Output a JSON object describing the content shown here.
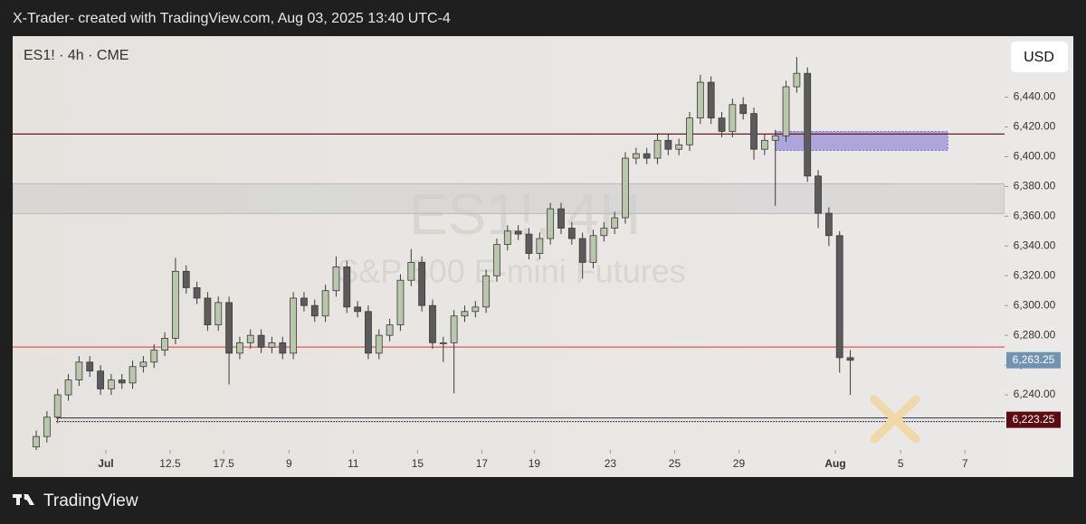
{
  "header": {
    "attribution": "X-Trader- created with TradingView.com, Aug 03, 2025 13:40 UTC-4"
  },
  "chart_data": {
    "type": "candlestick",
    "symbol": "ES1! · 4h · CME",
    "watermark_title": "ES1!, 4H",
    "watermark_subtitle": "S&P 500 E-mini Futures",
    "currency": "USD",
    "up_color": "#b9c7ab",
    "down_color": "#5b5b5b",
    "open": [
      6205,
      6212,
      6225,
      6240,
      6250,
      6262,
      6256,
      6244,
      6250,
      6248,
      6259,
      6262,
      6270,
      6278,
      6323,
      6312,
      6305,
      6287,
      6302,
      6268,
      6275,
      6280,
      6272,
      6275,
      6268,
      6305,
      6300,
      6293,
      6310,
      6326,
      6299,
      6296,
      6268,
      6280,
      6287,
      6317,
      6329,
      6300,
      6275,
      6275,
      6293,
      6296,
      6299,
      6320,
      6341,
      6350,
      6348,
      6335,
      6345,
      6365,
      6352,
      6345,
      6329,
      6347,
      6352,
      6359,
      6399,
      6402,
      6399,
      6411,
      6405,
      6408,
      6426,
      6450,
      6426,
      6417,
      6435,
      6429,
      6405,
      6411,
      6414,
      6447,
      6456,
      6387,
      6362,
      6347,
      6265
    ],
    "high": [
      6216,
      6229,
      6244,
      6254,
      6266,
      6266,
      6260,
      6254,
      6254,
      6263,
      6266,
      6274,
      6282,
      6332,
      6327,
      6316,
      6309,
      6306,
      6306,
      6279,
      6284,
      6284,
      6279,
      6279,
      6309,
      6309,
      6304,
      6314,
      6333,
      6330,
      6303,
      6300,
      6284,
      6291,
      6321,
      6338,
      6333,
      6304,
      6279,
      6297,
      6300,
      6303,
      6324,
      6345,
      6354,
      6354,
      6352,
      6349,
      6369,
      6369,
      6356,
      6349,
      6351,
      6356,
      6363,
      6403,
      6406,
      6406,
      6415,
      6415,
      6412,
      6430,
      6455,
      6454,
      6430,
      6439,
      6440,
      6433,
      6415,
      6418,
      6451,
      6467,
      6460,
      6391,
      6366,
      6350,
      6270
    ],
    "low": [
      6203,
      6208,
      6221,
      6236,
      6246,
      6252,
      6240,
      6240,
      6244,
      6244,
      6255,
      6258,
      6266,
      6274,
      6308,
      6301,
      6283,
      6283,
      6247,
      6264,
      6271,
      6268,
      6268,
      6264,
      6264,
      6296,
      6289,
      6289,
      6306,
      6295,
      6292,
      6264,
      6264,
      6276,
      6283,
      6313,
      6296,
      6271,
      6262,
      6241,
      6289,
      6292,
      6295,
      6316,
      6337,
      6344,
      6331,
      6331,
      6341,
      6348,
      6341,
      6318,
      6325,
      6343,
      6348,
      6355,
      6395,
      6395,
      6395,
      6401,
      6401,
      6404,
      6422,
      6422,
      6413,
      6413,
      6425,
      6398,
      6401,
      6367,
      6410,
      6443,
      6383,
      6352,
      6340,
      6255,
      6240
    ],
    "close": [
      6212,
      6225,
      6240,
      6250,
      6262,
      6256,
      6244,
      6250,
      6248,
      6259,
      6262,
      6270,
      6278,
      6323,
      6312,
      6305,
      6287,
      6302,
      6268,
      6275,
      6280,
      6272,
      6275,
      6268,
      6305,
      6300,
      6293,
      6310,
      6326,
      6299,
      6296,
      6268,
      6280,
      6287,
      6317,
      6329,
      6300,
      6275,
      6275,
      6293,
      6296,
      6299,
      6320,
      6341,
      6350,
      6348,
      6335,
      6345,
      6365,
      6352,
      6345,
      6329,
      6347,
      6352,
      6359,
      6399,
      6402,
      6399,
      6411,
      6405,
      6408,
      6426,
      6450,
      6426,
      6417,
      6435,
      6429,
      6405,
      6411,
      6414,
      6447,
      6456,
      6387,
      6362,
      6347,
      6265,
      6263.25
    ],
    "xlim": [
      -2.2,
      90.4
    ],
    "xticks": [
      {
        "value": 6.5,
        "label": "Jul"
      },
      12.5,
      17.5,
      {
        "value": 23.6,
        "label": "9"
      },
      {
        "value": 29.6,
        "label": "11"
      },
      {
        "value": 35.6,
        "label": "15"
      },
      {
        "value": 41.6,
        "label": "17"
      },
      {
        "value": 46.5,
        "label": "19"
      },
      {
        "value": 53.6,
        "label": "23"
      },
      {
        "value": 59.6,
        "label": "25"
      },
      {
        "value": 65.6,
        "label": "29"
      },
      {
        "value": 74.6,
        "label": "Aug"
      },
      {
        "value": 80.7,
        "label": "5"
      },
      {
        "value": 86.7,
        "label": "7"
      }
    ],
    "ylim": [
      6203,
      6481
    ],
    "yticks": [
      {
        "value": 6240,
        "label": "6,240.00"
      },
      {
        "value": 6260,
        "label": "6,260.00"
      },
      {
        "value": 6280,
        "label": "6,280.00"
      },
      {
        "value": 6300,
        "label": "6,300.00"
      },
      {
        "value": 6320,
        "label": "6,320.00"
      },
      {
        "value": 6340,
        "label": "6,340.00"
      },
      {
        "value": 6360,
        "label": "6,360.00"
      },
      {
        "value": 6380,
        "label": "6,380.00"
      },
      {
        "value": 6400,
        "label": "6,400.00"
      },
      {
        "value": 6420,
        "label": "6,420.00"
      },
      {
        "value": 6440,
        "label": "6,440.00"
      }
    ],
    "zones": [
      {
        "from": 6361.8,
        "to": 6381.8,
        "color": "#cfcfcf"
      },
      {
        "from": 6404.2,
        "to": 6417,
        "x": [
          69,
          85.1
        ],
        "color": "#7b6fd1"
      }
    ],
    "levels": [
      {
        "value": 6415.2,
        "color": "#6b1822"
      },
      {
        "value": 6272.1,
        "color": "#e0575a"
      },
      {
        "value": 6223.25,
        "label": "6,223.25",
        "color": "#2e2e3a",
        "label_color": "#5a0c10"
      }
    ],
    "last_price": {
      "value": 6263.25,
      "label": "6,263.25",
      "color": "#6f93b1"
    }
  },
  "footer": {
    "brand": "TradingView"
  }
}
